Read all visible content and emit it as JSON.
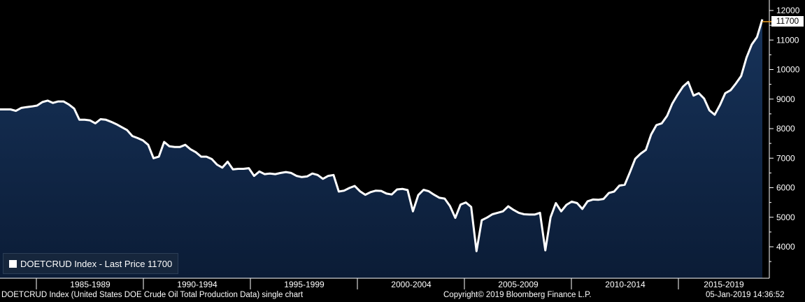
{
  "chart_data": {
    "type": "area",
    "title": "",
    "ylabel": "",
    "xlabel": "",
    "ylim": [
      3000,
      12200
    ],
    "yticks": [
      4000,
      5000,
      6000,
      7000,
      8000,
      9000,
      10000,
      11000,
      12000
    ],
    "xtick_labels": [
      "1985-1989",
      "1990-1994",
      "1995-1999",
      "2000-2004",
      "2005-2009",
      "2010-2014",
      "2015-2019"
    ],
    "grid": false,
    "last_value": "11700",
    "series": [
      {
        "name": "DOETCRUD Index - Last Price 11700",
        "color": "#ffffff",
        "fill": "#0e2444",
        "values": [
          8650,
          8650,
          8650,
          8600,
          8700,
          8730,
          8750,
          8780,
          8900,
          8950,
          8870,
          8920,
          8920,
          8820,
          8680,
          8300,
          8300,
          8280,
          8180,
          8320,
          8300,
          8230,
          8150,
          8050,
          7950,
          7750,
          7680,
          7600,
          7450,
          7000,
          7050,
          7550,
          7400,
          7380,
          7380,
          7450,
          7300,
          7200,
          7050,
          7050,
          6970,
          6780,
          6680,
          6880,
          6620,
          6640,
          6640,
          6660,
          6400,
          6550,
          6460,
          6480,
          6460,
          6500,
          6530,
          6500,
          6400,
          6360,
          6380,
          6480,
          6430,
          6300,
          6400,
          6430,
          5870,
          5900,
          5990,
          6060,
          5880,
          5760,
          5850,
          5900,
          5890,
          5800,
          5770,
          5940,
          5960,
          5920,
          5200,
          5750,
          5930,
          5880,
          5760,
          5660,
          5630,
          5380,
          4980,
          5430,
          5500,
          5350,
          3850,
          4900,
          4990,
          5100,
          5150,
          5200,
          5370,
          5250,
          5150,
          5100,
          5090,
          5090,
          5150,
          3880,
          5000,
          5480,
          5200,
          5420,
          5530,
          5480,
          5280,
          5540,
          5600,
          5590,
          5620,
          5820,
          5870,
          6070,
          6100,
          6530,
          6980,
          7150,
          7280,
          7800,
          8120,
          8180,
          8430,
          8850,
          9150,
          9420,
          9580,
          9120,
          9200,
          9020,
          8620,
          8470,
          8800,
          9200,
          9300,
          9530,
          9780,
          10400,
          10850,
          11100,
          11700
        ]
      }
    ]
  },
  "legend": {
    "label": "DOETCRUD Index - Last Price 11700"
  },
  "footer": {
    "left": "DOETCRUD Index (United States DOE Crude Oil Total Production Data) single chart",
    "center": "Copyright© 2019 Bloomberg Finance L.P.",
    "right": "05-Jan-2019 14:36:52"
  },
  "colors": {
    "background": "#000000",
    "area_fill": "#0e2444",
    "line": "#ffffff",
    "axis": "#ffffff"
  }
}
